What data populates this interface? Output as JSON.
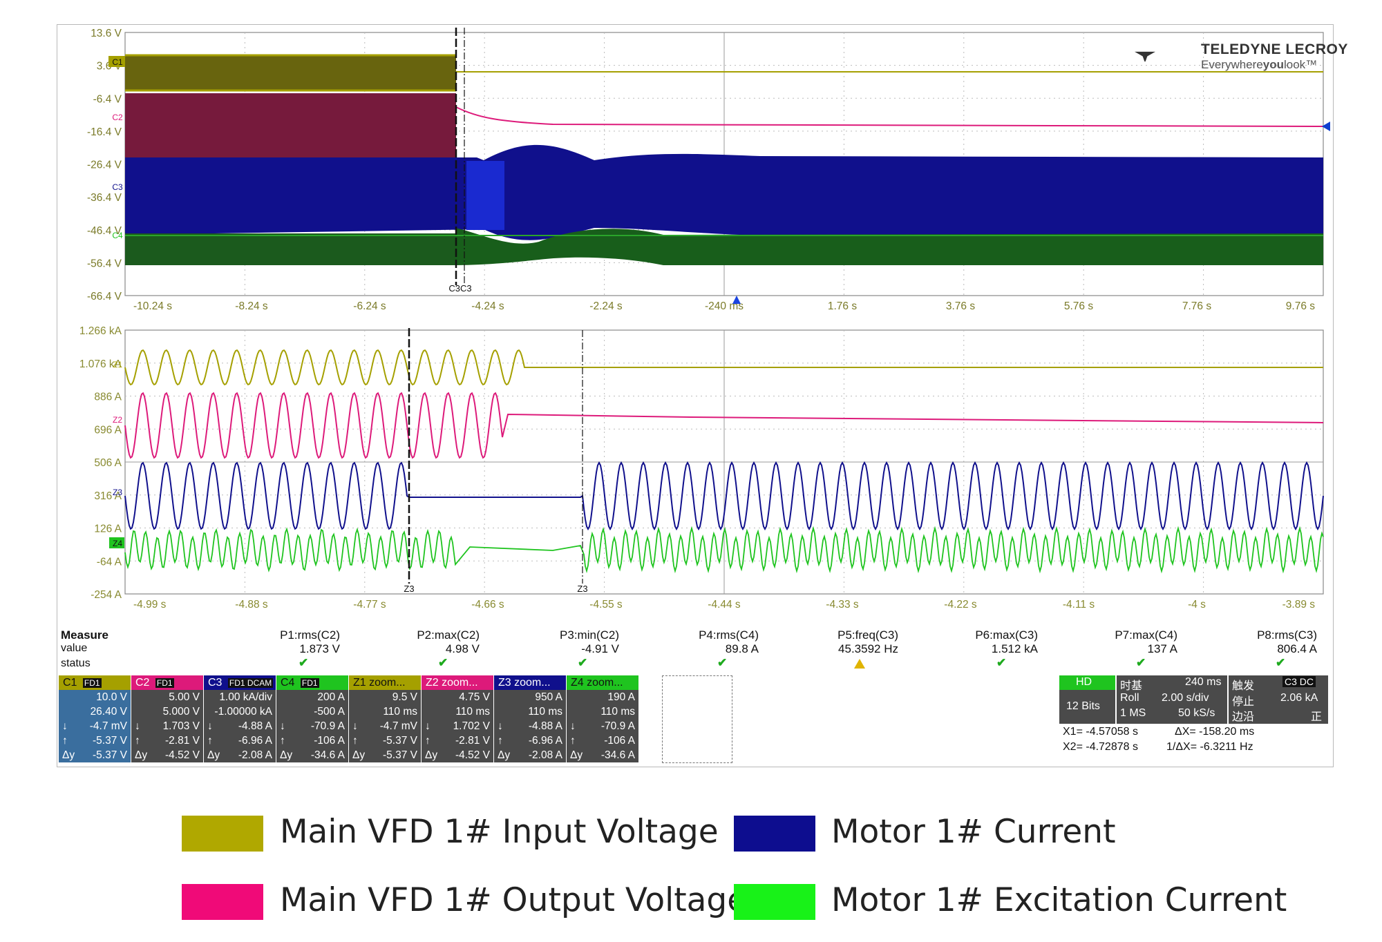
{
  "brand": {
    "name": "TELEDYNE LECROY",
    "tagline_pre": "Everywhere",
    "tagline_bold": "you",
    "tagline_post": "look"
  },
  "colors": {
    "c1": "#a5a000",
    "c2": "#dd1a7a",
    "c3": "#10108c",
    "c4": "#1fc41f"
  },
  "top_panel": {
    "y_labels": [
      "13.6 V",
      "3.6 V",
      "-6.4 V",
      "-16.4 V",
      "-26.4 V",
      "-36.4 V",
      "-46.4 V",
      "-56.4 V",
      "-66.4 V"
    ],
    "x_labels": [
      "-10.24 s",
      "-8.24 s",
      "-6.24 s",
      "-4.24 s",
      "-2.24 s",
      "-240 ms",
      "1.76 s",
      "3.76 s",
      "5.76 s",
      "7.76 s",
      "9.76 s"
    ],
    "cursor_label": "C3C3",
    "ch_tags": [
      "C1",
      "C2",
      "C3",
      "C4"
    ]
  },
  "bottom_panel": {
    "y_labels": [
      "1.266 kA",
      "1.076 kA",
      "886 A",
      "696 A",
      "506 A",
      "316 A",
      "126 A",
      "-64 A",
      "-254 A"
    ],
    "x_labels": [
      "-4.99 s",
      "-4.88 s",
      "-4.77 s",
      "-4.66 s",
      "-4.55 s",
      "-4.44 s",
      "-4.33 s",
      "-4.22 s",
      "-4.11 s",
      "-4 s",
      "-3.89 s"
    ],
    "cursor_labels": [
      "Z3",
      "Z3"
    ],
    "z_tags": [
      "Z1",
      "Z2",
      "Z3",
      "Z4"
    ]
  },
  "measure": {
    "title": "Measure",
    "row_value": "value",
    "row_status": "status",
    "items": [
      {
        "param": "P1:rms(C2)",
        "value": "1.873 V",
        "status": "ok"
      },
      {
        "param": "P2:max(C2)",
        "value": "4.98 V",
        "status": "ok"
      },
      {
        "param": "P3:min(C2)",
        "value": "-4.91 V",
        "status": "ok"
      },
      {
        "param": "P4:rms(C4)",
        "value": "89.8 A",
        "status": "ok"
      },
      {
        "param": "P5:freq(C3)",
        "value": "45.3592 Hz",
        "status": "warn"
      },
      {
        "param": "P6:max(C3)",
        "value": "1.512 kA",
        "status": "ok"
      },
      {
        "param": "P7:max(C4)",
        "value": "137 A",
        "status": "ok"
      },
      {
        "param": "P8:rms(C3)",
        "value": "806.4 A",
        "status": "ok"
      }
    ]
  },
  "channels": [
    {
      "name": "C1",
      "badge": "FD1",
      "lines": [
        "10.0 V",
        "26.40 V",
        "-4.7 mV",
        "-5.37 V",
        "-5.37 V"
      ]
    },
    {
      "name": "C2",
      "badge": "FD1",
      "lines": [
        "5.00 V",
        "5.000 V",
        "1.703 V",
        "-2.81 V",
        "-4.52 V"
      ]
    },
    {
      "name": "C3",
      "badge": "FD1 DCAM",
      "lines": [
        "1.00 kA/div",
        "-1.00000 kA",
        "-4.88 A",
        "-6.96 A",
        "-2.08 A"
      ]
    },
    {
      "name": "C4",
      "badge": "FD1",
      "lines": [
        "200 A",
        "-500 A",
        "-70.9 A",
        "-106 A",
        "-34.6 A"
      ]
    },
    {
      "name": "Z1 zoom...",
      "badge": "",
      "lines": [
        "9.5 V",
        "110 ms",
        "-4.7 mV",
        "-5.37 V",
        "-5.37 V"
      ]
    },
    {
      "name": "Z2 zoom...",
      "badge": "",
      "lines": [
        "4.75 V",
        "110 ms",
        "1.702 V",
        "-2.81 V",
        "-4.52 V"
      ]
    },
    {
      "name": "Z3 zoom...",
      "badge": "",
      "lines": [
        "950 A",
        "110 ms",
        "-4.88 A",
        "-6.96 A",
        "-2.08 A"
      ]
    },
    {
      "name": "Z4 zoom...",
      "badge": "",
      "lines": [
        "190 A",
        "110 ms",
        "-70.9 A",
        "-106 A",
        "-34.6 A"
      ]
    }
  ],
  "line_prefixes": [
    "",
    "",
    "↓",
    "↑",
    "Δy"
  ],
  "timebase": {
    "hd": "HD",
    "bits": "12 Bits",
    "tb_title": "时基",
    "tb_value": "240 ms",
    "mode": "Roll",
    "per_div": "2.00 s/div",
    "mem": "1 MS",
    "rate": "50 kS/s",
    "trig_title": "触发",
    "trig_badge": "C3 DC",
    "trig_state1": "停止",
    "trig_state2": "边沿",
    "trig_level": "2.06 kA",
    "trig_slope": "正",
    "x1": "X1= -4.57058 s",
    "dx": "ΔX= -158.20 ms",
    "x2": "X2= -4.72878 s",
    "inv_dx": "1/ΔX= -6.3211 Hz"
  },
  "legend": [
    {
      "label": "Main VFD 1# Input Voltage",
      "color": "#b0a800"
    },
    {
      "label": "Motor 1# Current",
      "color": "#0d0d8f"
    },
    {
      "label": "Main VFD 1# Output Voltage",
      "color": "#f00a78"
    },
    {
      "label": "Motor 1# Excitation Current",
      "color": "#18f218"
    }
  ]
}
